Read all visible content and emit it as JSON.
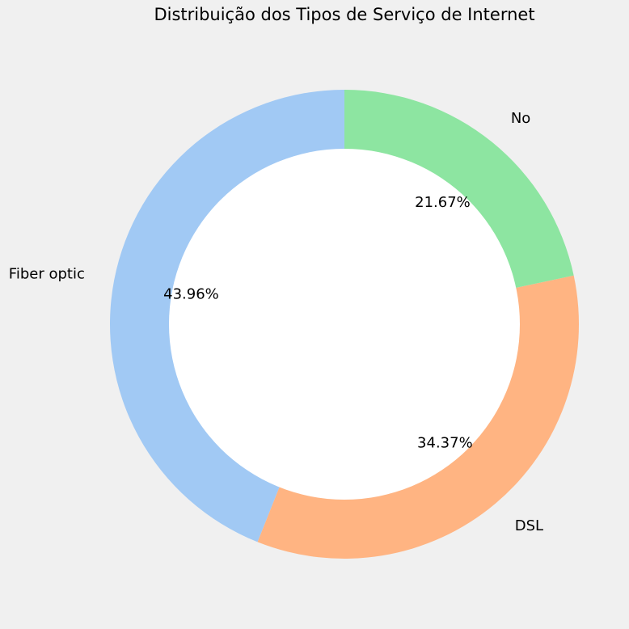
{
  "chart_data": {
    "type": "pie",
    "donut": true,
    "title": "Distribuição dos Tipos de Serviço de Internet",
    "start": "top",
    "direction": "counterclockwise",
    "slices": [
      {
        "label": "Fiber optic",
        "value": 43.96,
        "pct_label": "43.96%",
        "color": "#a1c9f4"
      },
      {
        "label": "DSL",
        "value": 34.37,
        "pct_label": "34.37%",
        "color": "#ffb482"
      },
      {
        "label": "No",
        "value": 21.67,
        "pct_label": "21.67%",
        "color": "#8de5a1"
      }
    ],
    "hole_color": "#ffffff",
    "background": "#f0f0f0"
  }
}
